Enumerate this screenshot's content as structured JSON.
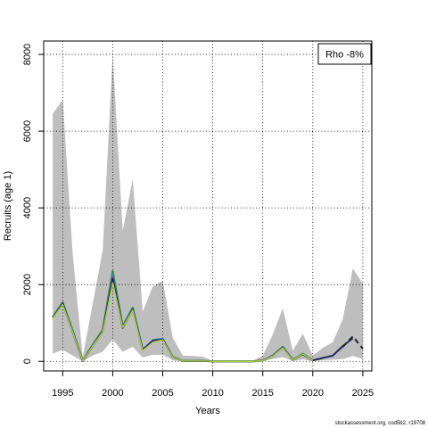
{
  "chart_data": {
    "type": "line",
    "xlabel": "Years",
    "ylabel": "Recruits (age 1)",
    "xlim": [
      1993.1,
      2025.9
    ],
    "ylim": [
      -250,
      8350
    ],
    "xticks": [
      1995,
      2000,
      2005,
      2010,
      2015,
      2020,
      2025
    ],
    "yticks": [
      0,
      2000,
      4000,
      6000,
      8000
    ],
    "grid": true,
    "legend": {
      "placement": "top-right",
      "text": "Rho -8%"
    },
    "band": {
      "color": "#bebebe",
      "x": [
        1994,
        1995,
        1996,
        1997,
        1998,
        1999,
        2000,
        2001,
        2002,
        2003,
        2004,
        2005,
        2006,
        2007,
        2008,
        2009,
        2010,
        2011,
        2012,
        2013,
        2014,
        2015,
        2016,
        2017,
        2018,
        2019,
        2020,
        2021,
        2022,
        2023,
        2024,
        2025
      ],
      "upper": [
        6450,
        6820,
        2800,
        120,
        1500,
        2900,
        8000,
        3400,
        4750,
        1300,
        1950,
        2100,
        620,
        150,
        140,
        120,
        15,
        15,
        15,
        15,
        15,
        150,
        700,
        1380,
        280,
        720,
        150,
        350,
        500,
        1100,
        2420,
        2030
      ],
      "lower": [
        200,
        300,
        150,
        0,
        150,
        250,
        570,
        250,
        380,
        100,
        170,
        170,
        30,
        5,
        5,
        5,
        0,
        0,
        0,
        0,
        0,
        10,
        60,
        110,
        10,
        50,
        5,
        30,
        40,
        60,
        140,
        60
      ]
    },
    "series": [
      {
        "color": "#2f8b2f",
        "width": 2.2,
        "x": [
          1994,
          1995,
          1996,
          1997,
          1998,
          1999,
          2000,
          2001,
          2002,
          2003,
          2004,
          2005,
          2006,
          2007,
          2008,
          2009,
          2010,
          2011,
          2012,
          2013,
          2014,
          2015,
          2016,
          2017,
          2018,
          2019,
          2020
        ],
        "y": [
          1150,
          1540,
          800,
          10,
          430,
          820,
          2350,
          920,
          1400,
          300,
          520,
          580,
          120,
          10,
          10,
          10,
          0,
          0,
          0,
          0,
          0,
          20,
          150,
          380,
          40,
          200,
          20
        ]
      },
      {
        "color": "#2aa3a3",
        "width": 1.6,
        "x": [
          1994,
          1995,
          1996,
          1997,
          1998,
          1999,
          2000,
          2001,
          2002,
          2003,
          2004,
          2005,
          2006,
          2007,
          2008,
          2009,
          2010,
          2011,
          2012,
          2013,
          2014,
          2015,
          2016,
          2017,
          2018,
          2019,
          2020,
          2021
        ],
        "y": [
          1150,
          1530,
          780,
          10,
          420,
          800,
          2280,
          900,
          1380,
          310,
          560,
          600,
          120,
          10,
          10,
          10,
          0,
          0,
          0,
          0,
          0,
          25,
          160,
          370,
          45,
          190,
          20,
          80
        ]
      },
      {
        "color": "#3f7fbf",
        "width": 1.6,
        "x": [
          1994,
          1995,
          1996,
          1997,
          1998,
          1999,
          2000,
          2001,
          2002,
          2003,
          2004,
          2005,
          2006,
          2007,
          2008,
          2009,
          2010,
          2011,
          2012,
          2013,
          2014,
          2015,
          2016,
          2017,
          2018,
          2019,
          2020,
          2021,
          2022
        ],
        "y": [
          1140,
          1520,
          780,
          10,
          410,
          790,
          2250,
          890,
          1370,
          310,
          550,
          590,
          115,
          10,
          10,
          10,
          0,
          0,
          0,
          0,
          0,
          25,
          155,
          365,
          45,
          185,
          25,
          90,
          140
        ]
      },
      {
        "color": "#6a3fa0",
        "width": 1.6,
        "x": [
          1994,
          1995,
          1996,
          1997,
          1998,
          1999,
          2000,
          2001,
          2002,
          2003,
          2004,
          2005,
          2006,
          2007,
          2008,
          2009,
          2010,
          2011,
          2012,
          2013,
          2014,
          2015,
          2016,
          2017,
          2018,
          2019,
          2020,
          2021,
          2022,
          2023
        ],
        "y": [
          1140,
          1510,
          770,
          10,
          400,
          780,
          2200,
          880,
          1360,
          300,
          540,
          580,
          110,
          10,
          10,
          10,
          0,
          0,
          0,
          0,
          0,
          25,
          150,
          360,
          45,
          180,
          25,
          90,
          150,
          380
        ]
      },
      {
        "color": "#222255",
        "width": 1.8,
        "x": [
          1994,
          1995,
          1996,
          1997,
          1998,
          1999,
          2000,
          2001,
          2002,
          2003,
          2004,
          2005,
          2006,
          2007,
          2008,
          2009,
          2010,
          2011,
          2012,
          2013,
          2014,
          2015,
          2016,
          2017,
          2018,
          2019,
          2020,
          2021,
          2022,
          2023,
          2024
        ],
        "y": [
          1130,
          1500,
          760,
          10,
          400,
          770,
          2150,
          870,
          1350,
          300,
          530,
          570,
          110,
          10,
          10,
          10,
          0,
          0,
          0,
          0,
          0,
          25,
          150,
          355,
          45,
          180,
          25,
          90,
          150,
          400,
          600
        ]
      },
      {
        "color": "#aacc44",
        "width": 1.4,
        "x": [
          1994,
          1995,
          1996,
          1997,
          1998,
          1999,
          2000,
          2001,
          2002,
          2003,
          2004,
          2005,
          2006,
          2007,
          2008,
          2009,
          2010,
          2011,
          2012,
          2013,
          2014,
          2015,
          2016,
          2017,
          2018,
          2019,
          2020
        ],
        "y": [
          1120,
          1480,
          760,
          10,
          400,
          760,
          2050,
          880,
          1330,
          280,
          500,
          560,
          110,
          10,
          10,
          10,
          0,
          0,
          0,
          0,
          0,
          20,
          145,
          350,
          40,
          190,
          20
        ]
      }
    ],
    "dashed": {
      "color": "#222222",
      "x": [
        2023,
        2024,
        2025
      ],
      "y": [
        380,
        650,
        330
      ]
    }
  },
  "footer": "stockassessment.org, cod5b2, r19708"
}
